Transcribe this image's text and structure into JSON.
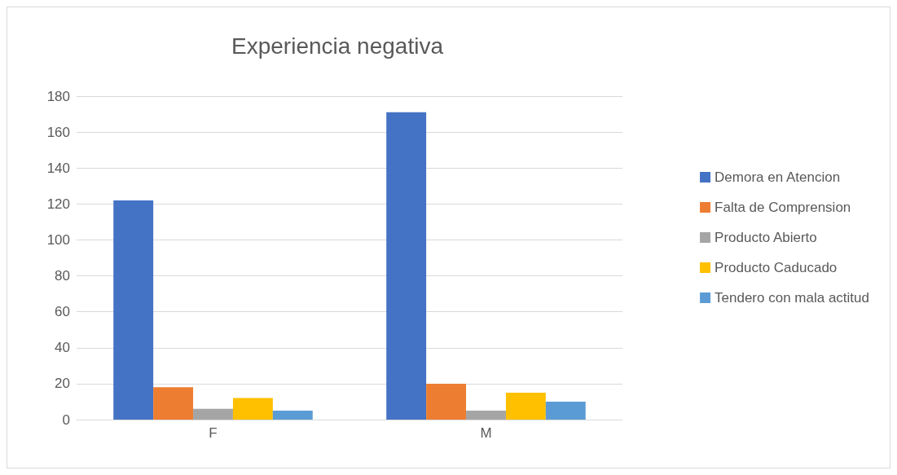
{
  "chart_data": {
    "type": "bar",
    "title": "Experiencia negativa",
    "categories": [
      "F",
      "M"
    ],
    "series": [
      {
        "name": "Demora en Atencion",
        "color": "#4472c4",
        "values": [
          122,
          171
        ]
      },
      {
        "name": "Falta de Comprension",
        "color": "#ed7d31",
        "values": [
          18,
          20
        ]
      },
      {
        "name": "Producto Abierto",
        "color": "#a5a5a5",
        "values": [
          6,
          5
        ]
      },
      {
        "name": "Producto Caducado",
        "color": "#ffc000",
        "values": [
          12,
          15
        ]
      },
      {
        "name": "Tendero con mala actitud",
        "color": "#5b9bd5",
        "values": [
          5,
          10
        ]
      }
    ],
    "ylim": [
      0,
      180
    ],
    "yticks": [
      0,
      20,
      40,
      60,
      80,
      100,
      120,
      140,
      160,
      180
    ],
    "grid": "y",
    "legend": "right"
  }
}
